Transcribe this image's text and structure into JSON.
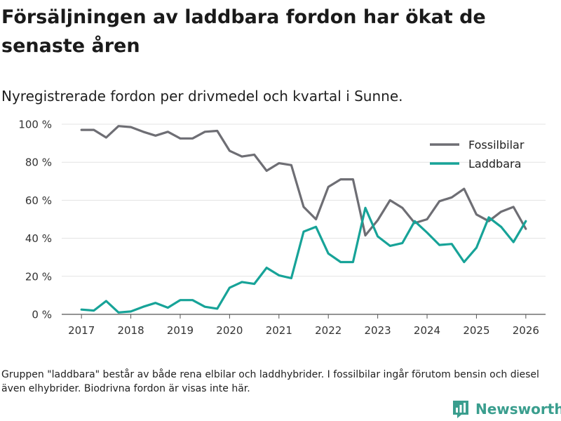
{
  "title": "Försäljningen av laddbara fordon har ökat de senaste åren",
  "subtitle": "Nyregistrerade fordon per drivmedel och kvartal i Sunne.",
  "footnote": "Gruppen \"laddbara\" består av både rena elbilar och laddhybrider. I fossilbilar ingår förutom bensin och diesel även elhybrider. Biodrivna fordon är visas inte här.",
  "brand": {
    "name": "Newsworthy",
    "color": "#3a9e8e",
    "icon": "bar-chart-logo-icon"
  },
  "chart_data": {
    "type": "line",
    "x_ticks": [
      "2017",
      "2018",
      "2019",
      "2020",
      "2021",
      "2022",
      "2023",
      "2024",
      "2025",
      "2026"
    ],
    "y_ticks": [
      "0 %",
      "20 %",
      "40 %",
      "60 %",
      "80 %",
      "100 %"
    ],
    "xlim": [
      2016.6,
      2026.4
    ],
    "ylim": [
      0,
      100
    ],
    "grid": true,
    "legend_position": "top-right",
    "series": [
      {
        "name": "Fossilbilar",
        "color": "#6e6e74",
        "x": [
          2017.0,
          2017.25,
          2017.5,
          2017.75,
          2018.0,
          2018.25,
          2018.5,
          2018.75,
          2019.0,
          2019.25,
          2019.5,
          2019.75,
          2020.0,
          2020.25,
          2020.5,
          2020.75,
          2021.0,
          2021.25,
          2021.5,
          2021.75,
          2022.0,
          2022.25,
          2022.5,
          2022.75,
          2023.0,
          2023.25,
          2023.5,
          2023.75,
          2024.0,
          2024.25,
          2024.5,
          2024.75,
          2025.0,
          2025.25,
          2025.5,
          2025.75,
          2026.0
        ],
        "values": [
          97,
          97,
          93,
          99,
          98.5,
          96,
          94,
          96,
          92.5,
          92.5,
          96,
          96.5,
          86,
          83,
          84,
          75.5,
          79.5,
          78.5,
          56.5,
          50,
          67,
          71,
          71,
          41.5,
          49.5,
          60,
          56,
          48,
          50,
          59.5,
          61.5,
          66,
          52.5,
          49,
          54,
          56.5,
          45
        ]
      },
      {
        "name": "Laddbara",
        "color": "#17a398",
        "x": [
          2017.0,
          2017.25,
          2017.5,
          2017.75,
          2018.0,
          2018.25,
          2018.5,
          2018.75,
          2019.0,
          2019.25,
          2019.5,
          2019.75,
          2020.0,
          2020.25,
          2020.5,
          2020.75,
          2021.0,
          2021.25,
          2021.5,
          2021.75,
          2022.0,
          2022.25,
          2022.5,
          2022.75,
          2023.0,
          2023.25,
          2023.5,
          2023.75,
          2024.0,
          2024.25,
          2024.5,
          2024.75,
          2025.0,
          2025.25,
          2025.5,
          2025.75,
          2026.0
        ],
        "values": [
          2.5,
          2,
          7,
          1,
          1.5,
          4,
          6,
          3.5,
          7.5,
          7.5,
          4,
          3,
          14,
          17,
          16,
          24.5,
          20.5,
          19,
          43.5,
          46,
          32,
          27.5,
          27.5,
          56,
          41,
          36,
          37.5,
          49,
          43,
          36.5,
          37,
          27.5,
          35,
          51,
          46,
          38,
          49
        ]
      }
    ]
  }
}
